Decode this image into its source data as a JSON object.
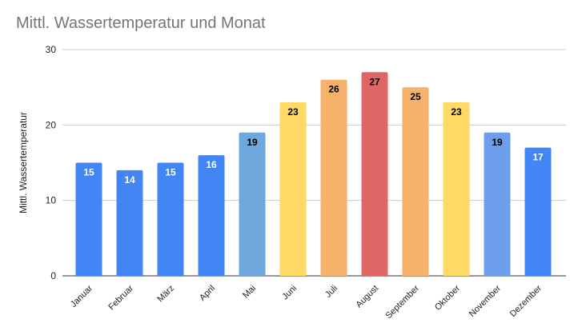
{
  "chart_data": {
    "type": "bar",
    "title": "Mittl. Wassertemperatur und Monat",
    "xlabel": "",
    "ylabel": "Mittl. Wassertemperatur",
    "ylim": [
      0,
      30
    ],
    "yticks": [
      0,
      10,
      20,
      30
    ],
    "grid": true,
    "legend": "none",
    "categories": [
      "Januar",
      "Februar",
      "März",
      "April",
      "Mai",
      "Juni",
      "Juli",
      "August",
      "September",
      "Oktober",
      "November",
      "Dezember"
    ],
    "values": [
      15,
      14,
      15,
      16,
      19,
      23,
      26,
      27,
      25,
      23,
      19,
      17
    ],
    "bar_colors": [
      "#4285f4",
      "#4285f4",
      "#4285f4",
      "#4285f4",
      "#6fa8dc",
      "#ffd966",
      "#f6b26b",
      "#e06666",
      "#f6b26b",
      "#ffd966",
      "#6d9eeb",
      "#4285f4"
    ],
    "label_colors": [
      "#ffffff",
      "#ffffff",
      "#ffffff",
      "#ffffff",
      "#000000",
      "#000000",
      "#000000",
      "#000000",
      "#000000",
      "#000000",
      "#000000",
      "#ffffff"
    ]
  }
}
